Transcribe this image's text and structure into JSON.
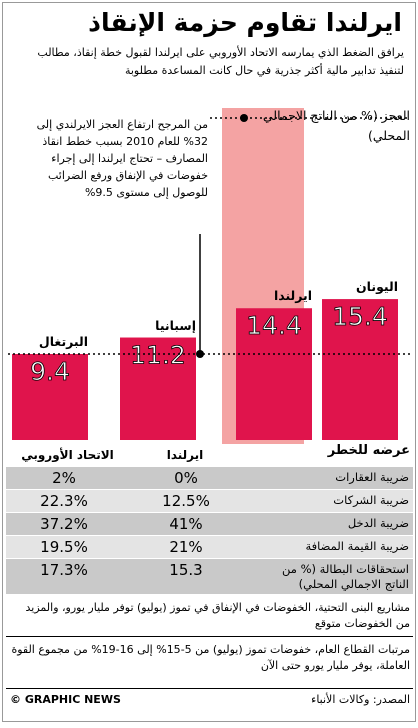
{
  "title": "ايرلندا تقاوم حزمة الإنقاذ",
  "intro": "يرافق الضغط الذي يمارسه الاتحاد الأوروبي على ايرلندا لقبول خطة إنقاذ، مطالب لتنفيذ تدابير مالية أكثر جذرية في حال كانت المساعدة مطلوبة",
  "colors": {
    "bar": "#e0144c",
    "band": "#f4a3a3",
    "text": "#000000",
    "row_dark": "#c9c9c9",
    "row_light": "#e4e4e4"
  },
  "callout_deficit": "من المرجح ارتفاع العجز الايرلندي إلى 32% للعام 2010 بسبب خطط انقاذ المصارف – تحتاج ايرلندا إلى إجراء خفوضات في الإنفاق ورفع الضرائب للوصول إلى مستوى 9.5%",
  "chart_data": {
    "type": "bar",
    "categories": [
      "البرتغال",
      "إسبانيا",
      "ايرلندا",
      "اليونان"
    ],
    "values": [
      9.4,
      11.2,
      14.4,
      15.4
    ],
    "value_labels": [
      "9.4",
      "11.2",
      "14.4",
      "15.4"
    ],
    "ylabel": "العجز (% من الناتج الاجمالي المحلي)",
    "highlighted_category": "ايرلندا",
    "reference_lines": [
      {
        "value": 9.5,
        "style": "dotted"
      },
      {
        "value": 32,
        "style": "dotted"
      }
    ],
    "ylim": [
      0,
      32
    ]
  },
  "risk_table": {
    "header": "عرضه للخطر",
    "col_ireland": "ايرلندا",
    "col_eu": "الاتحاد الأوروبي",
    "rows": [
      {
        "label": "ضريبة العقارات",
        "ireland": "0%",
        "eu": "2%"
      },
      {
        "label": "ضريبة الشركات",
        "ireland": "12.5%",
        "eu": "22.3%"
      },
      {
        "label": "ضريبة الدخل",
        "ireland": "41%",
        "eu": "37.2%"
      },
      {
        "label": "ضريبة القيمة المضافة",
        "ireland": "21%",
        "eu": "19.5%"
      },
      {
        "label": "استحقاقات البطالة (% من الناتج الاجمالي المحلي)",
        "ireland": "15.3",
        "eu": "17.3%"
      }
    ]
  },
  "note1": "مشاريع البنى التحتية، الخفوضات في الإنفاق في تموز (يوليو) توفر مليار يورو، والمزيد من الخفوضات متوقع",
  "note2": "مرتبات القطاع العام، خفوضات تموز (يوليو) من 5-15% إلى 16-19% من مجموع القوة العاملة، يوفر مليار يورو حتى الآن",
  "credit": "© GRAPHIC NEWS",
  "source": "المصدر: وكالات الأنباء"
}
